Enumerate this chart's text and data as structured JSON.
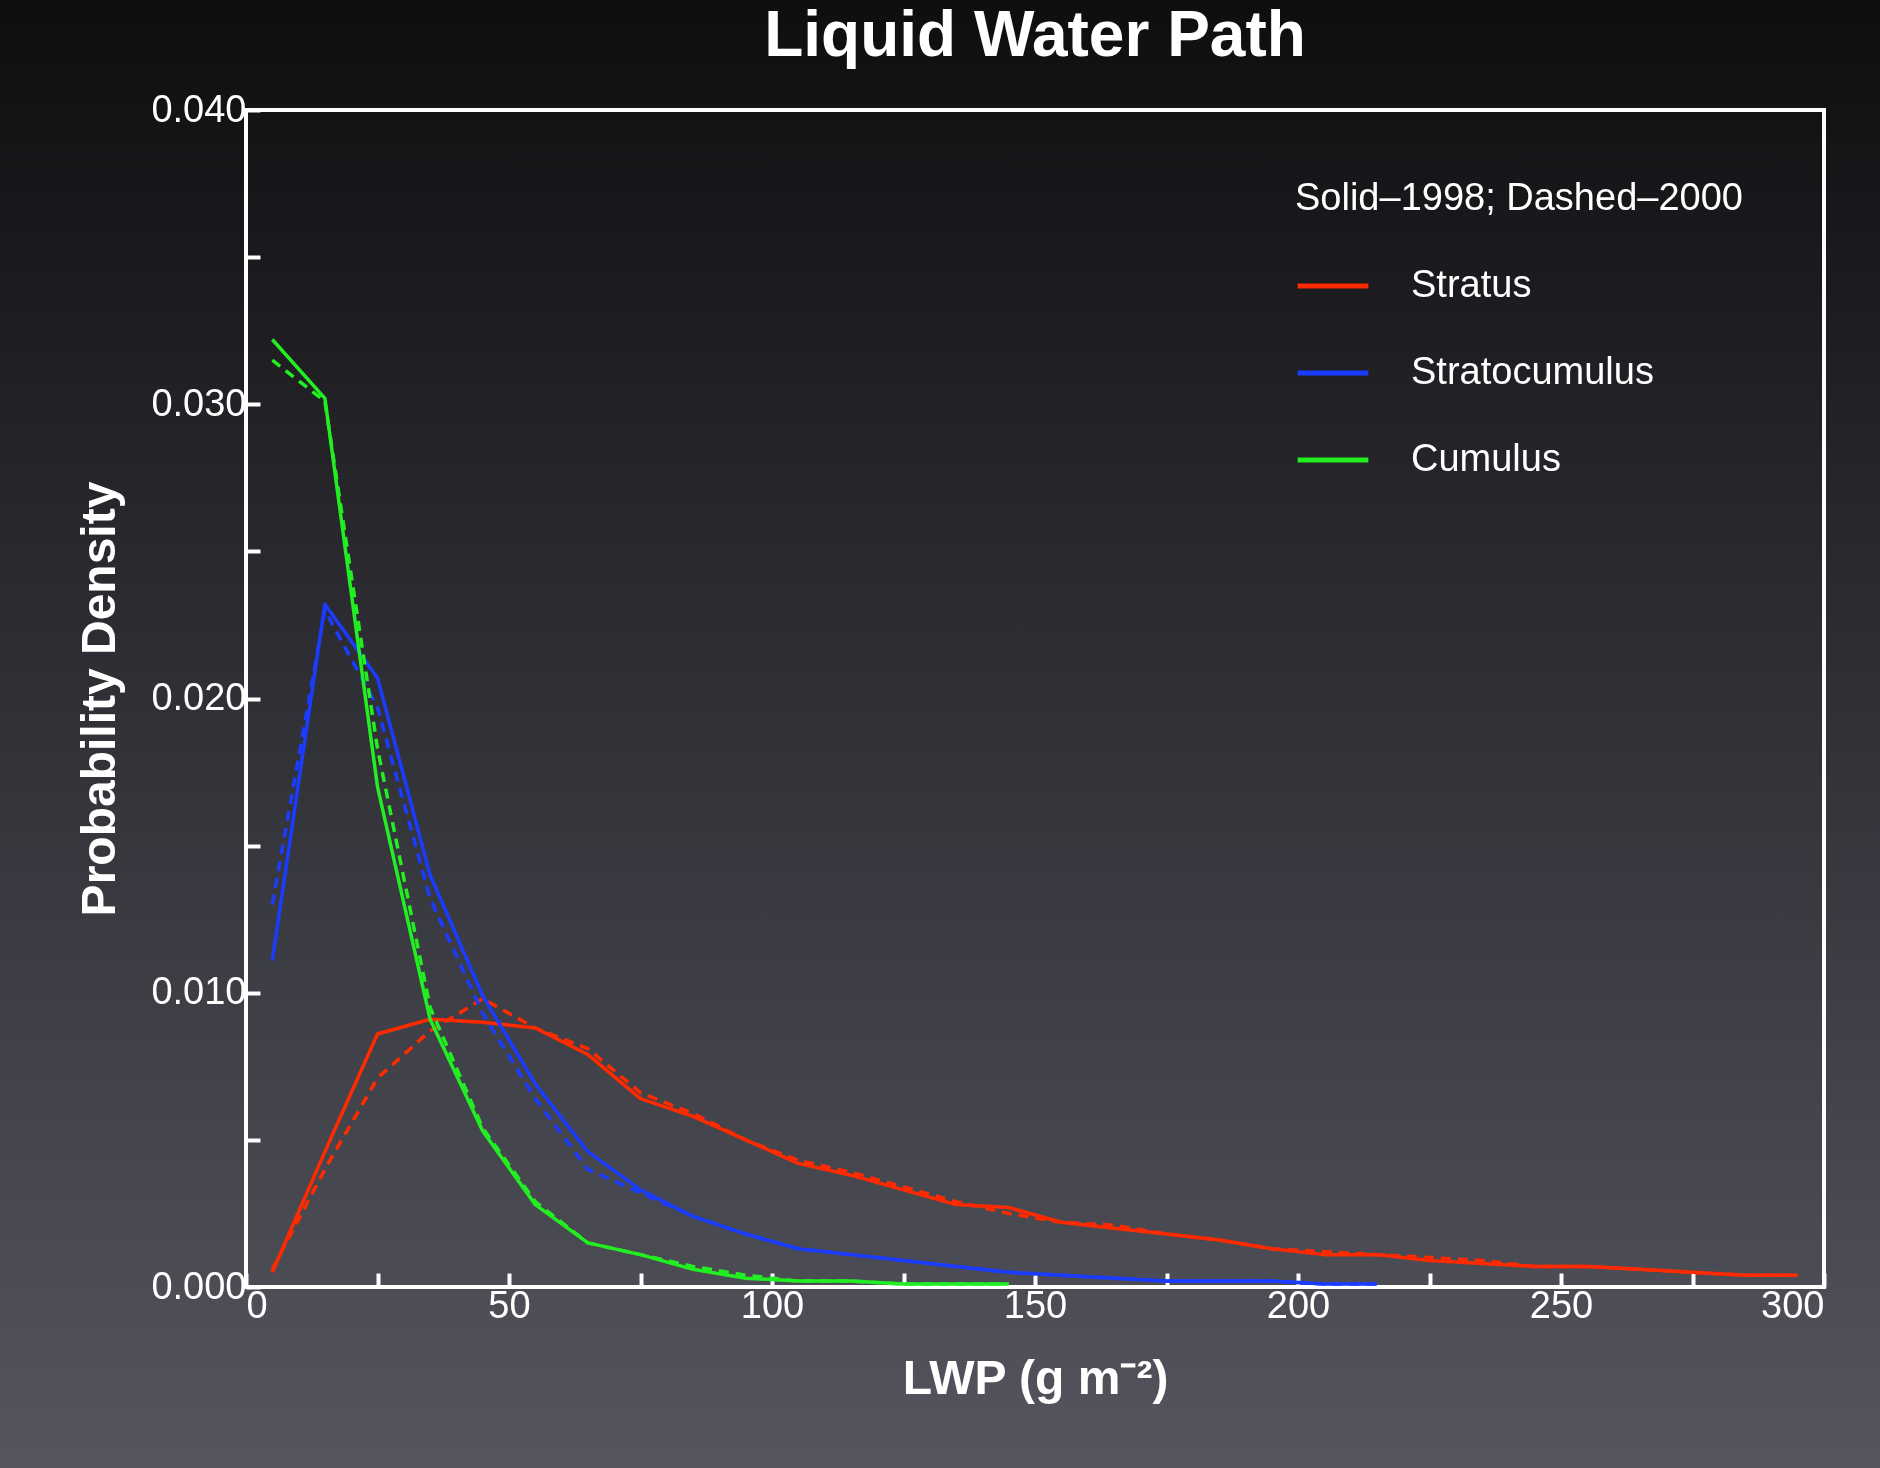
{
  "chart_data": {
    "type": "line",
    "title": "Liquid Water Path",
    "xlabel": "LWP (g m⁻²)",
    "ylabel": "Probability Density",
    "legend_title": "Solid–1998;  Dashed–2000",
    "legend": "top right",
    "grid": false,
    "marker": "none",
    "xlim": [
      0,
      300
    ],
    "xticks": [
      0,
      {
        "value": 25,
        "label": null
      },
      50,
      {
        "value": 75,
        "label": null
      },
      100,
      {
        "value": 125,
        "label": null
      },
      150,
      {
        "value": 175,
        "label": null
      },
      200,
      {
        "value": 225,
        "label": null
      },
      250,
      {
        "value": 275,
        "label": null
      },
      300
    ],
    "ylim": [
      0,
      0.04
    ],
    "yticks": [
      {
        "value": 0,
        "label": "0.000"
      },
      {
        "value": 0.005,
        "label": null
      },
      {
        "value": 0.01,
        "label": "0.010"
      },
      {
        "value": 0.015,
        "label": null
      },
      {
        "value": 0.02,
        "label": "0.020"
      },
      {
        "value": 0.025,
        "label": null
      },
      {
        "value": 0.03,
        "label": "0.030"
      },
      {
        "value": 0.035,
        "label": null
      },
      {
        "value": 0.04,
        "label": "0.040"
      }
    ],
    "series": [
      {
        "name": "Stratus",
        "color": "#ff2a00",
        "line_style": "solid",
        "x": [
          5,
          15,
          25,
          35,
          45,
          55,
          65,
          75,
          85,
          95,
          105,
          115,
          125,
          135,
          145,
          155,
          165,
          175,
          185,
          195,
          205,
          215,
          225,
          235,
          245,
          255,
          265,
          275,
          285,
          295
        ],
        "values": [
          0.0005,
          0.0046,
          0.0086,
          0.0091,
          0.009,
          0.0088,
          0.0079,
          0.0064,
          0.0058,
          0.005,
          0.0042,
          0.0038,
          0.0033,
          0.0028,
          0.0027,
          0.0022,
          0.002,
          0.0018,
          0.0016,
          0.0013,
          0.0011,
          0.0011,
          0.0009,
          0.0008,
          0.0007,
          0.0007,
          0.0006,
          0.0005,
          0.0004,
          0.0004
        ]
      },
      {
        "color": "#ff2a00",
        "line_style": "dashed",
        "x": [
          5,
          15,
          25,
          35,
          45,
          55,
          65,
          75,
          85,
          95,
          105,
          115,
          125,
          135,
          145,
          155,
          165,
          175,
          185,
          195,
          205,
          215,
          225,
          235,
          245,
          255,
          265,
          275,
          285,
          295
        ],
        "values": [
          0.0006,
          0.004,
          0.0071,
          0.0087,
          0.0098,
          0.0088,
          0.0081,
          0.0066,
          0.0059,
          0.005,
          0.0043,
          0.0039,
          0.0034,
          0.0029,
          0.0025,
          0.0022,
          0.0021,
          0.0018,
          0.0016,
          0.0013,
          0.0012,
          0.0011,
          0.001,
          0.0009,
          0.0007,
          0.0007,
          0.0006,
          0.0005,
          0.0004,
          0.0004
        ]
      },
      {
        "name": "Stratocumulus",
        "color": "#1a3cff",
        "line_style": "solid",
        "x": [
          5,
          15,
          25,
          35,
          45,
          55,
          65,
          75,
          85,
          95,
          105,
          115,
          125,
          135,
          145,
          155,
          165,
          175,
          185,
          195,
          205,
          215
        ],
        "values": [
          0.0111,
          0.0232,
          0.0207,
          0.014,
          0.0099,
          0.0069,
          0.0046,
          0.0033,
          0.0024,
          0.0018,
          0.0013,
          0.0011,
          0.0009,
          0.0007,
          0.0005,
          0.0004,
          0.0003,
          0.0002,
          0.0002,
          0.0002,
          0.0001,
          0.0001
        ]
      },
      {
        "color": "#1a3cff",
        "line_style": "dashed",
        "x": [
          5,
          15,
          25,
          35,
          45,
          55,
          65,
          75,
          85,
          95,
          105,
          115,
          125,
          135,
          145,
          155,
          165,
          175,
          185,
          195,
          205,
          215
        ],
        "values": [
          0.013,
          0.023,
          0.0197,
          0.0132,
          0.0093,
          0.0064,
          0.004,
          0.0032,
          0.0024,
          0.0018,
          0.0013,
          0.0011,
          0.0009,
          0.0007,
          0.0005,
          0.0004,
          0.0003,
          0.0002,
          0.0002,
          0.0002,
          0.0001,
          0.0001
        ]
      },
      {
        "name": "Cumulus",
        "color": "#22ee22",
        "line_style": "solid",
        "x": [
          5,
          15,
          25,
          35,
          45,
          55,
          65,
          75,
          85,
          95,
          105,
          115,
          125,
          135,
          145
        ],
        "values": [
          0.0322,
          0.0302,
          0.017,
          0.0091,
          0.0053,
          0.0028,
          0.0015,
          0.0011,
          0.0006,
          0.0003,
          0.0002,
          0.0002,
          0.0001,
          0.0001,
          0.0001
        ]
      },
      {
        "color": "#22ee22",
        "line_style": "dashed",
        "x": [
          5,
          15,
          25,
          35,
          45,
          55,
          65,
          75,
          85,
          95,
          105,
          115,
          125,
          135,
          145
        ],
        "values": [
          0.0315,
          0.0301,
          0.0183,
          0.0095,
          0.0054,
          0.0029,
          0.0015,
          0.0011,
          0.0007,
          0.0004,
          0.0002,
          0.0002,
          0.0001,
          0.0001,
          0.0001
        ]
      }
    ]
  }
}
